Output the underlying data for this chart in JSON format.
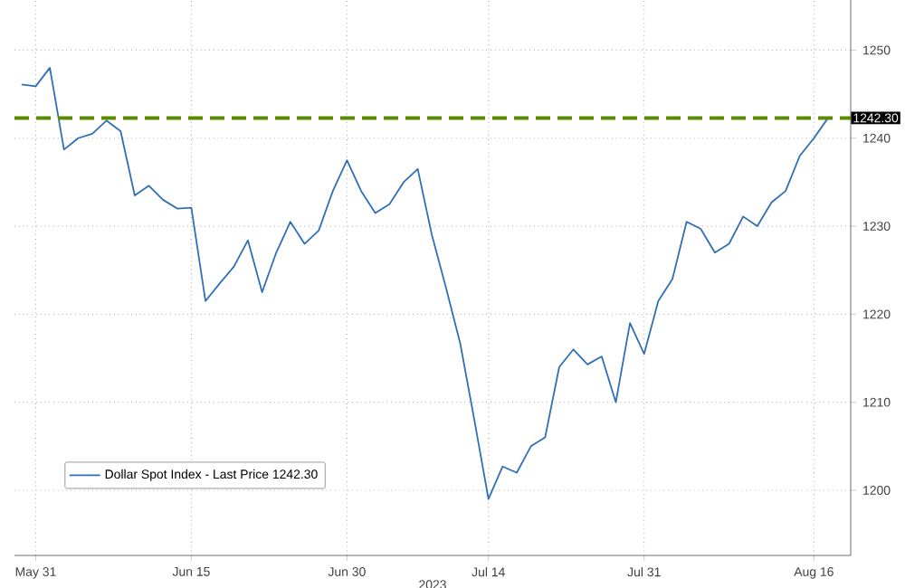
{
  "chart_data": {
    "type": "line",
    "xlabel": "2023",
    "categories": [
      null,
      "May 31",
      null,
      null,
      null,
      null,
      null,
      null,
      null,
      null,
      null,
      null,
      "Jun 15",
      null,
      null,
      null,
      null,
      null,
      null,
      null,
      null,
      null,
      null,
      "Jun 30",
      null,
      null,
      null,
      null,
      null,
      null,
      null,
      null,
      null,
      "Jul 14",
      null,
      null,
      null,
      null,
      null,
      null,
      null,
      null,
      null,
      null,
      "Jul 31",
      null,
      null,
      null,
      null,
      null,
      null,
      null,
      null,
      null,
      null,
      null,
      "Aug 16",
      null
    ],
    "ylim": [
      1192.6,
      1255.7
    ],
    "yticks": [
      1200,
      1210,
      1220,
      1230,
      1240,
      1250
    ],
    "grid": true,
    "legend": "bottom left",
    "marker": "none",
    "line_style": "solid",
    "ref_lines": [
      {
        "axis": "y",
        "value": 1242.3,
        "label": "1242.30",
        "color": "#5b8c00",
        "line_style": "dashed"
      }
    ],
    "series": [
      {
        "name": "Dollar Spot Index - Last Price 1242.30",
        "color": "#2f6fb5",
        "values": [
          1246.1,
          1245.9,
          1248,
          1238.7,
          1240,
          1240.5,
          1242,
          1240.8,
          1233.5,
          1234.6,
          1233,
          1232,
          1232.1,
          1221.5,
          1223.5,
          1225.4,
          1228.4,
          1222.5,
          1227,
          1230.5,
          1228,
          1229.5,
          1234,
          1237.5,
          1234,
          1231.5,
          1232.5,
          1235,
          1236.5,
          1229,
          1223,
          1216.7,
          1208,
          1199,
          1202.7,
          1202,
          1205,
          1206,
          1214,
          1216,
          1214.3,
          1215.2,
          1210,
          1219,
          1215.5,
          1221.5,
          1224,
          1230.5,
          1229.7,
          1227,
          1228,
          1231.1,
          1230,
          1232.7,
          1234,
          1238,
          1240,
          1242.3
        ]
      }
    ]
  }
}
